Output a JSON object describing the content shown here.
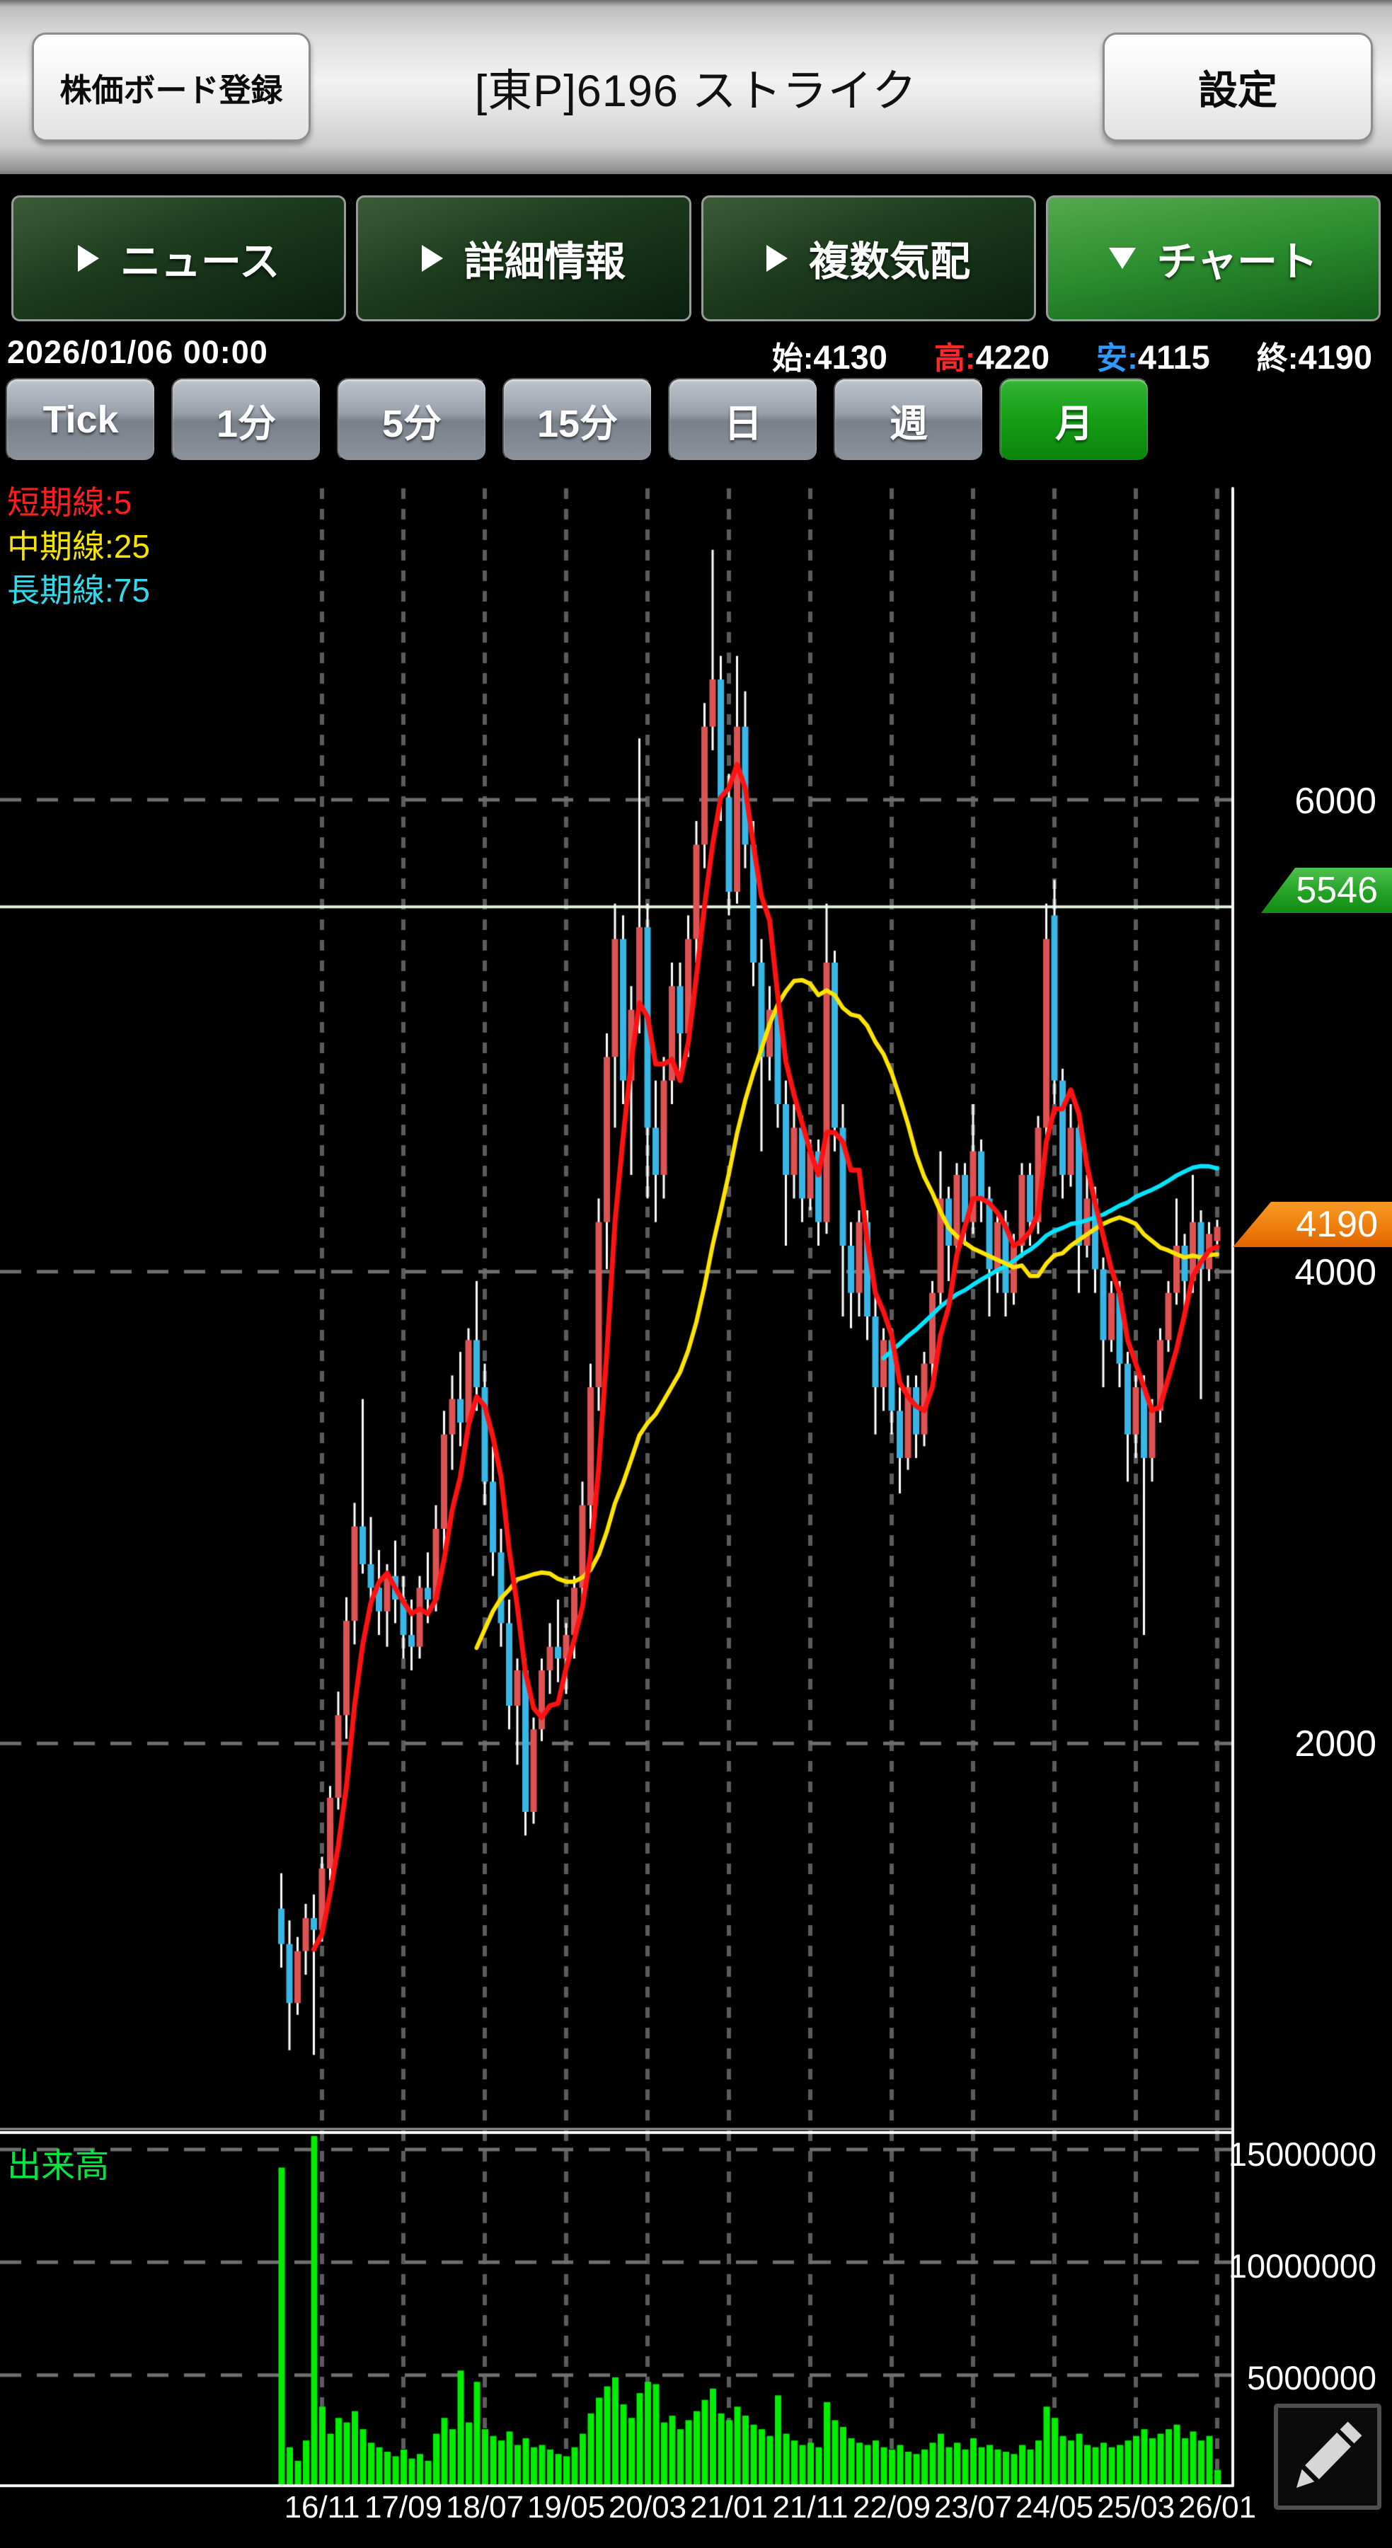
{
  "header": {
    "register_button": "株価ボード登録",
    "title": "[東P]6196 ストライク",
    "settings_button": "設定"
  },
  "tabs": [
    {
      "label": "ニュース",
      "selected": false
    },
    {
      "label": "詳細情報",
      "selected": false
    },
    {
      "label": "複数気配",
      "selected": false
    },
    {
      "label": "チャート",
      "selected": true
    }
  ],
  "quote": {
    "datetime": "2026/01/06 00:00",
    "open_label": "始:",
    "open_value": "4130",
    "high_label": "高:",
    "high_value": "4220",
    "low_label": "安:",
    "low_value": "4115",
    "close_label": "終:",
    "close_value": "4190"
  },
  "timeframes": [
    {
      "label": "Tick",
      "selected": false
    },
    {
      "label": "1分",
      "selected": false
    },
    {
      "label": "5分",
      "selected": false
    },
    {
      "label": "15分",
      "selected": false
    },
    {
      "label": "日",
      "selected": false
    },
    {
      "label": "週",
      "selected": false
    },
    {
      "label": "月",
      "selected": true
    }
  ],
  "legend": [
    {
      "label": "短期線:5",
      "color": "#ff1e1e"
    },
    {
      "label": "中期線:25",
      "color": "#f5e400"
    },
    {
      "label": "長期線:75",
      "color": "#35d8e8"
    }
  ],
  "volume_title": "出来高",
  "price_axis": {
    "labels": [
      "6000",
      "4000",
      "2000"
    ],
    "high_badge": "5546",
    "current_badge": "4190"
  },
  "volume_axis": {
    "labels": [
      "15000000",
      "10000000",
      "5000000"
    ]
  },
  "icons": {
    "edit": "pencil",
    "tab_arrow": "triangle",
    "selected_tab_arrow": "triangle-down"
  },
  "colors": {
    "up_candle": "#dd5353",
    "down_candle": "#38b6e6",
    "wick": "#ffffff",
    "ma_short": "#ff1212",
    "ma_mid": "#ffe400",
    "ma_long": "#00e5ff",
    "volume_bar": "#00ee00",
    "high_line": "#e7f2e0",
    "badge_high": "#2fae2f",
    "badge_current": "#ef8310",
    "grid": "#5c5c5c",
    "frame": "#ffffff"
  },
  "chart_data": {
    "type": "candlestick",
    "ma_periods": {
      "short": 5,
      "mid": 25,
      "long": 75
    },
    "y_gridlines": [
      6000,
      4000,
      2000
    ],
    "high_line_price": 5546,
    "current_price": 4190,
    "volume_gridlines": [
      15000000,
      10000000,
      5000000
    ],
    "x_labels": [
      "16/11",
      "17/09",
      "18/07",
      "19/05",
      "20/03",
      "21/01",
      "21/11",
      "22/09",
      "23/07",
      "24/05",
      "25/03",
      "26/01"
    ],
    "columns": [
      "month",
      "open",
      "high",
      "low",
      "close",
      "volume"
    ],
    "candles": [
      [
        "2016/06",
        1300,
        1450,
        1050,
        1150,
        14200000
      ],
      [
        "2016/07",
        1150,
        1250,
        700,
        900,
        1800000
      ],
      [
        "2016/08",
        900,
        1180,
        850,
        1120,
        1200000
      ],
      [
        "2016/09",
        1120,
        1320,
        1020,
        1260,
        2100000
      ],
      [
        "2016/10",
        1260,
        1360,
        680,
        1210,
        15600000
      ],
      [
        "2016/11",
        1210,
        1520,
        1160,
        1470,
        3600000
      ],
      [
        "2016/12",
        1470,
        1820,
        1420,
        1770,
        2400000
      ],
      [
        "2017/01",
        1770,
        2220,
        1720,
        2120,
        3100000
      ],
      [
        "2017/02",
        2120,
        2620,
        2020,
        2520,
        2900000
      ],
      [
        "2017/03",
        2520,
        3020,
        2420,
        2920,
        3400000
      ],
      [
        "2017/04",
        2920,
        3460,
        2720,
        2760,
        2600000
      ],
      [
        "2017/05",
        2760,
        2960,
        2560,
        2660,
        2000000
      ],
      [
        "2017/06",
        2660,
        2820,
        2460,
        2560,
        1800000
      ],
      [
        "2017/07",
        2560,
        2760,
        2410,
        2710,
        1600000
      ],
      [
        "2017/08",
        2710,
        2860,
        2510,
        2610,
        1400000
      ],
      [
        "2017/09",
        2610,
        2710,
        2360,
        2460,
        1700000
      ],
      [
        "2017/10",
        2460,
        2610,
        2310,
        2410,
        1300000
      ],
      [
        "2017/11",
        2410,
        2710,
        2360,
        2660,
        1500000
      ],
      [
        "2017/12",
        2660,
        2810,
        2510,
        2610,
        1200000
      ],
      [
        "2018/01",
        2610,
        3010,
        2560,
        2910,
        2400000
      ],
      [
        "2018/02",
        2910,
        3410,
        2810,
        3310,
        3100000
      ],
      [
        "2018/03",
        3310,
        3560,
        3160,
        3460,
        2600000
      ],
      [
        "2018/04",
        3460,
        3660,
        3260,
        3360,
        5200000
      ],
      [
        "2018/05",
        3360,
        3760,
        3310,
        3710,
        2900000
      ],
      [
        "2018/06",
        3710,
        3960,
        3410,
        3510,
        4700000
      ],
      [
        "2018/07",
        3510,
        3610,
        3010,
        3110,
        2600000
      ],
      [
        "2018/08",
        3110,
        3260,
        2710,
        2810,
        2300000
      ],
      [
        "2018/09",
        2810,
        2910,
        2410,
        2510,
        2100000
      ],
      [
        "2018/10",
        2510,
        2610,
        2060,
        2160,
        2500000
      ],
      [
        "2018/11",
        2160,
        2360,
        1910,
        2310,
        1900000
      ],
      [
        "2018/12",
        2310,
        2360,
        1610,
        1710,
        2200000
      ],
      [
        "2019/01",
        1710,
        2110,
        1660,
        2060,
        1800000
      ],
      [
        "2019/02",
        2060,
        2360,
        2010,
        2310,
        1900000
      ],
      [
        "2019/03",
        2310,
        2510,
        2210,
        2410,
        1700000
      ],
      [
        "2019/04",
        2410,
        2610,
        2260,
        2360,
        1500000
      ],
      [
        "2019/05",
        2360,
        2510,
        2210,
        2460,
        1400000
      ],
      [
        "2019/06",
        2460,
        2710,
        2360,
        2660,
        1800000
      ],
      [
        "2019/07",
        2660,
        3110,
        2610,
        3010,
        2400000
      ],
      [
        "2019/08",
        3010,
        3610,
        2910,
        3510,
        3300000
      ],
      [
        "2019/09",
        3510,
        4310,
        3410,
        4210,
        4000000
      ],
      [
        "2019/10",
        4210,
        5010,
        4010,
        4910,
        4500000
      ],
      [
        "2019/11",
        4910,
        5560,
        4610,
        5410,
        4900000
      ],
      [
        "2019/12",
        5410,
        5510,
        4710,
        4810,
        3700000
      ],
      [
        "2020/01",
        4810,
        5210,
        4410,
        5110,
        3100000
      ],
      [
        "2020/02",
        5110,
        6260,
        5010,
        5460,
        4200000
      ],
      [
        "2020/03",
        5460,
        5560,
        4310,
        4610,
        4700000
      ],
      [
        "2020/04",
        4610,
        4810,
        4210,
        4410,
        4600000
      ],
      [
        "2020/05",
        4410,
        4910,
        4310,
        4810,
        2900000
      ],
      [
        "2020/06",
        4810,
        5310,
        4710,
        5210,
        3200000
      ],
      [
        "2020/07",
        5210,
        5310,
        4810,
        5010,
        2600000
      ],
      [
        "2020/08",
        5010,
        5510,
        4910,
        5410,
        3000000
      ],
      [
        "2020/09",
        5410,
        5910,
        5310,
        5810,
        3400000
      ],
      [
        "2020/10",
        5810,
        6410,
        5710,
        6310,
        3900000
      ],
      [
        "2020/11",
        6310,
        7060,
        6210,
        6510,
        4400000
      ],
      [
        "2020/12",
        6510,
        6610,
        5910,
        6010,
        3300000
      ],
      [
        "2021/01",
        6010,
        6110,
        5510,
        5610,
        3000000
      ],
      [
        "2021/02",
        5610,
        6610,
        5560,
        6310,
        3600000
      ],
      [
        "2021/03",
        6310,
        6460,
        5710,
        5810,
        3200000
      ],
      [
        "2021/04",
        5810,
        5910,
        5210,
        5310,
        2800000
      ],
      [
        "2021/05",
        5310,
        5410,
        4510,
        4910,
        2600000
      ],
      [
        "2021/06",
        4910,
        5210,
        4810,
        5110,
        2300000
      ],
      [
        "2021/07",
        5110,
        5160,
        4610,
        4710,
        4100000
      ],
      [
        "2021/08",
        4710,
        4810,
        4110,
        4410,
        2400000
      ],
      [
        "2021/09",
        4410,
        4710,
        4310,
        4610,
        2100000
      ],
      [
        "2021/10",
        4610,
        4660,
        4210,
        4310,
        1900000
      ],
      [
        "2021/11",
        4310,
        4560,
        4260,
        4510,
        2000000
      ],
      [
        "2021/12",
        4510,
        4560,
        4110,
        4210,
        1800000
      ],
      [
        "2022/01",
        4210,
        5560,
        4160,
        5310,
        3800000
      ],
      [
        "2022/02",
        5310,
        5360,
        4510,
        4610,
        3000000
      ],
      [
        "2022/03",
        4610,
        4710,
        3810,
        4110,
        2700000
      ],
      [
        "2022/04",
        4110,
        4210,
        3760,
        3910,
        2200000
      ],
      [
        "2022/05",
        3910,
        4260,
        3810,
        4210,
        2000000
      ],
      [
        "2022/06",
        4210,
        4260,
        3710,
        3810,
        1900000
      ],
      [
        "2022/07",
        3810,
        3910,
        3310,
        3510,
        2100000
      ],
      [
        "2022/08",
        3510,
        3760,
        3410,
        3710,
        1800000
      ],
      [
        "2022/09",
        3710,
        3760,
        3310,
        3410,
        1700000
      ],
      [
        "2022/10",
        3410,
        3510,
        3060,
        3210,
        1900000
      ],
      [
        "2022/11",
        3210,
        3560,
        3160,
        3510,
        1600000
      ],
      [
        "2022/12",
        3510,
        3560,
        3210,
        3310,
        1500000
      ],
      [
        "2023/01",
        3310,
        3660,
        3260,
        3610,
        1700000
      ],
      [
        "2023/02",
        3610,
        3960,
        3510,
        3910,
        2000000
      ],
      [
        "2023/03",
        3910,
        4510,
        3860,
        4310,
        2400000
      ],
      [
        "2023/04",
        4310,
        4360,
        3960,
        4110,
        1800000
      ],
      [
        "2023/05",
        4110,
        4460,
        4060,
        4410,
        2000000
      ],
      [
        "2023/06",
        4410,
        4460,
        4110,
        4210,
        1700000
      ],
      [
        "2023/07",
        4210,
        4710,
        4160,
        4510,
        2200000
      ],
      [
        "2023/08",
        4510,
        4560,
        4210,
        4310,
        1800000
      ],
      [
        "2023/09",
        4310,
        4360,
        3810,
        4010,
        1900000
      ],
      [
        "2023/10",
        4010,
        4260,
        3910,
        4210,
        1700000
      ],
      [
        "2023/11",
        4210,
        4260,
        3810,
        3910,
        1600000
      ],
      [
        "2023/12",
        3910,
        4160,
        3860,
        4110,
        1500000
      ],
      [
        "2024/01",
        4110,
        4460,
        4060,
        4410,
        1900000
      ],
      [
        "2024/02",
        4410,
        4460,
        4110,
        4210,
        1700000
      ],
      [
        "2024/03",
        4210,
        4660,
        4160,
        4610,
        2100000
      ],
      [
        "2024/04",
        4610,
        5560,
        4560,
        5410,
        3600000
      ],
      [
        "2024/05",
        5510,
        5660,
        4710,
        4810,
        3100000
      ],
      [
        "2024/06",
        4810,
        4860,
        4310,
        4410,
        2300000
      ],
      [
        "2024/07",
        4410,
        4710,
        4360,
        4610,
        2100000
      ],
      [
        "2024/08",
        4610,
        4660,
        3910,
        4110,
        2400000
      ],
      [
        "2024/09",
        4110,
        4410,
        4060,
        4310,
        1900000
      ],
      [
        "2024/10",
        4310,
        4360,
        3910,
        4010,
        1800000
      ],
      [
        "2024/11",
        4010,
        4060,
        3510,
        3710,
        2000000
      ],
      [
        "2024/12",
        3710,
        3960,
        3660,
        3910,
        1800000
      ],
      [
        "2025/01",
        3910,
        3960,
        3510,
        3610,
        1900000
      ],
      [
        "2025/02",
        3610,
        3660,
        3110,
        3310,
        2100000
      ],
      [
        "2025/03",
        3310,
        3560,
        3210,
        3510,
        2300000
      ],
      [
        "2025/04",
        3510,
        3560,
        2460,
        3210,
        2600000
      ],
      [
        "2025/05",
        3210,
        3460,
        3110,
        3410,
        2200000
      ],
      [
        "2025/06",
        3410,
        3760,
        3360,
        3710,
        2400000
      ],
      [
        "2025/07",
        3710,
        3960,
        3660,
        3910,
        2600000
      ],
      [
        "2025/08",
        3910,
        4310,
        3860,
        4110,
        2800000
      ],
      [
        "2025/09",
        4110,
        4160,
        3810,
        3960,
        2200000
      ],
      [
        "2025/10",
        3960,
        4410,
        3910,
        4210,
        2500000
      ],
      [
        "2025/11",
        4210,
        4260,
        3460,
        4010,
        2100000
      ],
      [
        "2025/12",
        4010,
        4210,
        3960,
        4160,
        2300000
      ],
      [
        "2026/01",
        4130,
        4220,
        4115,
        4190,
        800000
      ]
    ]
  }
}
